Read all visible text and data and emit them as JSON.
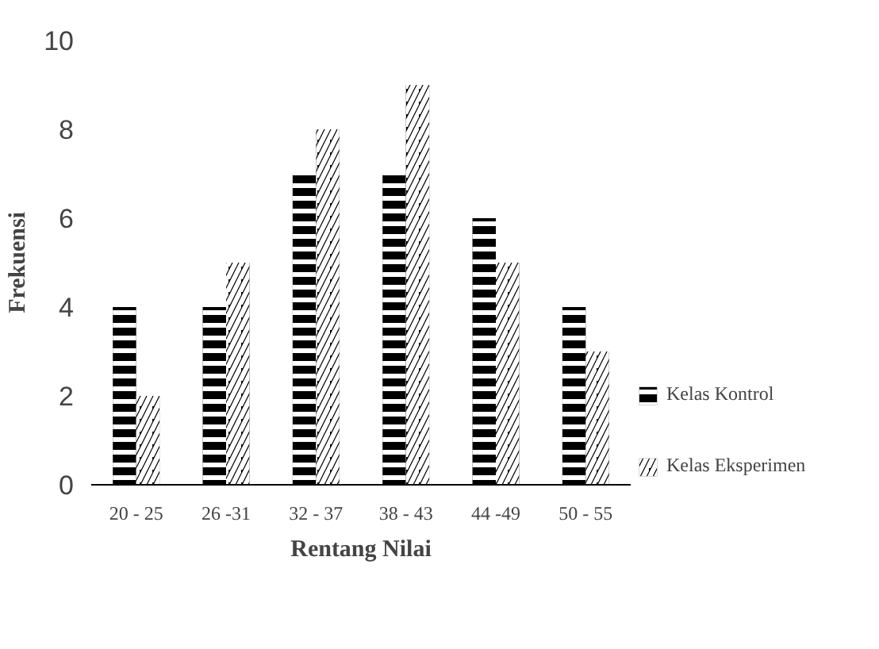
{
  "chart_data": {
    "type": "bar",
    "xlabel": "Rentang Nilai",
    "ylabel": "Frekuensi",
    "categories": [
      "20 - 25",
      "26 -31",
      "32 - 37",
      "38 - 43",
      "44 -49",
      "50 - 55"
    ],
    "series": [
      {
        "name": "Kelas Kontrol",
        "color": "#000000",
        "values": [
          4,
          4,
          7,
          7,
          6,
          4
        ]
      },
      {
        "name": "Kelas Eksperimen",
        "color": "#000000",
        "values": [
          2,
          5,
          8,
          9,
          5,
          3
        ]
      }
    ],
    "ylim": [
      0,
      10
    ],
    "yticks": [
      0,
      2,
      4,
      6,
      8,
      10
    ],
    "grid": false,
    "legend": "right"
  }
}
